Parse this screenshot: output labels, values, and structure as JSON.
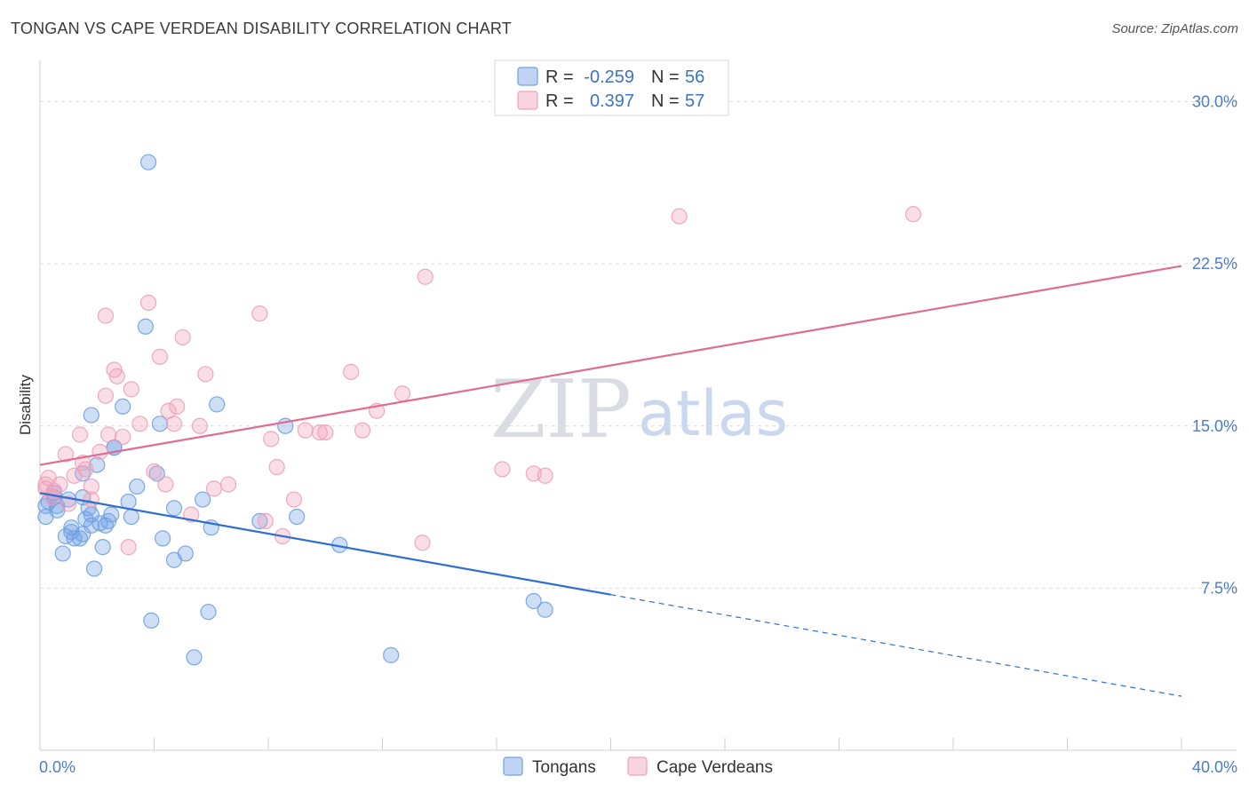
{
  "header": {
    "title": "TONGAN VS CAPE VERDEAN DISABILITY CORRELATION CHART",
    "source": "Source: ZipAtlas.com"
  },
  "watermark": {
    "zip": "ZIP",
    "atlas": "atlas"
  },
  "legend": {
    "rows": [
      {
        "r_label": "R =",
        "r_value": "-0.259",
        "n_label": "N =",
        "n_value": "56",
        "color": "#6fa0e3"
      },
      {
        "r_label": "R =",
        "r_value": "0.397",
        "n_label": "N =",
        "n_value": "57",
        "color": "#f0a0b8"
      }
    ]
  },
  "bottom_legend": [
    "Tongans",
    "Cape Verdeans"
  ],
  "chart_data": {
    "type": "scatter",
    "title": "TONGAN VS CAPE VERDEAN DISABILITY CORRELATION CHART",
    "xlabel": "",
    "ylabel": "Disability",
    "xlim": [
      0,
      40
    ],
    "ylim": [
      0,
      31.5
    ],
    "x_tick_labels": [
      "0.0%",
      "40.0%"
    ],
    "y_ticks": [
      7.5,
      15.0,
      22.5,
      30.0
    ],
    "y_tick_labels": [
      "7.5%",
      "15.0%",
      "22.5%",
      "30.0%"
    ],
    "series": [
      {
        "name": "Tongans",
        "color": "#6fa0e3",
        "line_color": "#2f6fd0",
        "trend": {
          "x0": 0,
          "y0": 11.9,
          "x1": 20,
          "y1": 7.2,
          "x_dash_end": 40,
          "y_dash_end": 2.5
        },
        "points": [
          [
            0.2,
            11.3
          ],
          [
            0.2,
            10.8
          ],
          [
            0.3,
            11.5
          ],
          [
            0.5,
            11.7
          ],
          [
            0.6,
            11.3
          ],
          [
            0.6,
            11.1
          ],
          [
            0.8,
            9.1
          ],
          [
            0.9,
            9.9
          ],
          [
            1.0,
            11.6
          ],
          [
            1.1,
            10.3
          ],
          [
            1.1,
            10.1
          ],
          [
            1.2,
            9.8
          ],
          [
            1.4,
            9.8
          ],
          [
            1.5,
            10.0
          ],
          [
            1.5,
            11.7
          ],
          [
            1.5,
            12.8
          ],
          [
            1.6,
            10.7
          ],
          [
            1.7,
            11.2
          ],
          [
            1.8,
            10.9
          ],
          [
            1.8,
            10.4
          ],
          [
            1.8,
            15.5
          ],
          [
            1.9,
            8.4
          ],
          [
            2.0,
            13.2
          ],
          [
            2.1,
            10.5
          ],
          [
            2.2,
            9.4
          ],
          [
            2.3,
            10.4
          ],
          [
            2.4,
            10.6
          ],
          [
            2.5,
            10.9
          ],
          [
            2.6,
            14.0
          ],
          [
            2.9,
            15.9
          ],
          [
            3.1,
            11.5
          ],
          [
            3.2,
            10.8
          ],
          [
            3.4,
            12.2
          ],
          [
            3.8,
            27.2
          ],
          [
            3.9,
            6.0
          ],
          [
            4.1,
            12.8
          ],
          [
            4.2,
            15.1
          ],
          [
            4.3,
            9.8
          ],
          [
            4.7,
            11.2
          ],
          [
            4.7,
            8.8
          ],
          [
            5.1,
            9.1
          ],
          [
            5.4,
            4.3
          ],
          [
            5.7,
            11.6
          ],
          [
            5.9,
            6.4
          ],
          [
            6.0,
            10.3
          ],
          [
            6.2,
            16.0
          ],
          [
            7.7,
            10.6
          ],
          [
            8.6,
            15.0
          ],
          [
            9.0,
            10.8
          ],
          [
            10.5,
            9.5
          ],
          [
            12.3,
            4.4
          ],
          [
            17.3,
            6.9
          ],
          [
            17.7,
            6.5
          ],
          [
            3.7,
            19.6
          ],
          [
            2.6,
            14.0
          ],
          [
            0.5,
            11.9
          ]
        ]
      },
      {
        "name": "Cape Verdeans",
        "color": "#f0a0b8",
        "line_color": "#e06c93",
        "trend": {
          "x0": 0,
          "y0": 13.2,
          "x1": 40,
          "y1": 22.4
        },
        "points": [
          [
            0.2,
            12.1
          ],
          [
            0.2,
            12.3
          ],
          [
            0.3,
            12.6
          ],
          [
            0.4,
            11.7
          ],
          [
            0.5,
            12.0
          ],
          [
            0.7,
            12.3
          ],
          [
            0.9,
            13.7
          ],
          [
            1.0,
            11.4
          ],
          [
            1.2,
            12.7
          ],
          [
            1.4,
            14.6
          ],
          [
            1.5,
            13.3
          ],
          [
            1.6,
            13.0
          ],
          [
            1.8,
            11.6
          ],
          [
            1.8,
            12.2
          ],
          [
            2.1,
            13.8
          ],
          [
            2.3,
            20.1
          ],
          [
            2.3,
            16.4
          ],
          [
            2.4,
            14.6
          ],
          [
            2.6,
            17.6
          ],
          [
            2.7,
            17.3
          ],
          [
            2.9,
            14.5
          ],
          [
            3.2,
            16.7
          ],
          [
            3.5,
            15.1
          ],
          [
            3.8,
            20.7
          ],
          [
            4.0,
            12.9
          ],
          [
            4.2,
            18.2
          ],
          [
            4.4,
            12.3
          ],
          [
            4.5,
            15.7
          ],
          [
            4.7,
            15.1
          ],
          [
            4.8,
            15.9
          ],
          [
            5.0,
            19.1
          ],
          [
            5.3,
            10.9
          ],
          [
            5.6,
            15.0
          ],
          [
            5.8,
            17.4
          ],
          [
            6.1,
            12.1
          ],
          [
            6.6,
            12.3
          ],
          [
            7.7,
            20.2
          ],
          [
            7.9,
            10.6
          ],
          [
            8.1,
            14.4
          ],
          [
            8.3,
            13.1
          ],
          [
            8.5,
            9.9
          ],
          [
            8.9,
            11.6
          ],
          [
            9.3,
            14.8
          ],
          [
            9.8,
            14.7
          ],
          [
            10.0,
            14.7
          ],
          [
            10.9,
            17.5
          ],
          [
            11.3,
            14.8
          ],
          [
            11.8,
            15.7
          ],
          [
            12.7,
            16.5
          ],
          [
            13.4,
            9.6
          ],
          [
            13.5,
            21.9
          ],
          [
            16.2,
            13.0
          ],
          [
            17.3,
            12.8
          ],
          [
            17.7,
            12.7
          ],
          [
            22.4,
            24.7
          ],
          [
            30.6,
            24.8
          ],
          [
            3.1,
            9.4
          ]
        ]
      }
    ]
  }
}
